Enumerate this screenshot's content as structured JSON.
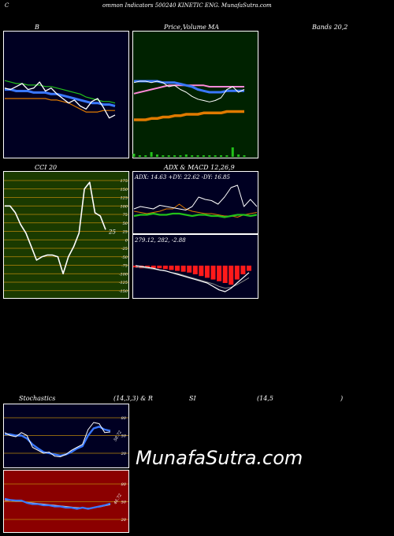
{
  "header": {
    "left": "C",
    "center": "ommon  Indicators 500240  KINETIC ENG. MunafaSutra.com"
  },
  "titles": {
    "bollinger": "B",
    "price": "Price,",
    "volume": "Volume",
    "ma": "MA",
    "bands": "Bands 20,2",
    "cci": "CCI 20",
    "adx_macd": "ADX  & MACD 12,26,9",
    "stoch": "Stochastics",
    "stoch_params": "(14,3,3) & R",
    "rsi": "SI",
    "rsi_params": "(14,5",
    "rsi_close": ")"
  },
  "readouts": {
    "adx": "ADX: 14.63  +DY: 22.62  -DY: 16.85",
    "macd": "279.12,  282,  -2.88",
    "cci_value": "25",
    "stoch_value": "58.72",
    "rsi_value": "46.72"
  },
  "watermark": "MunafaSutra.com",
  "colors": {
    "panel_dark": "#000022",
    "price_bg": "#002200",
    "cci_bg": "#1a3a00",
    "rsi_bg": "#8b0000",
    "grid": "#b8860b",
    "blue_band": "#3a78ff",
    "green_band": "#22c01a",
    "orange": "#e07a00",
    "pink": "#ff8ad8",
    "red_hist": "#ff1a1a"
  },
  "chart_data": [
    {
      "type": "line",
      "name": "bollinger-bands",
      "series": [
        {
          "values": [
            97,
            96,
            95,
            95,
            94,
            94,
            94,
            93,
            93,
            92,
            91,
            90,
            89,
            88,
            86,
            85,
            84,
            83,
            83,
            82
          ]
        },
        {
          "values": [
            92,
            91,
            93,
            95,
            91,
            92,
            96,
            90,
            92,
            88,
            85,
            82,
            84,
            80,
            78,
            83,
            85,
            79,
            72,
            74
          ]
        },
        {
          "values": [
            91,
            91,
            90,
            90,
            90,
            89,
            89,
            89,
            88,
            88,
            87,
            86,
            85,
            84,
            83,
            82,
            82,
            81,
            81,
            80
          ]
        },
        {
          "values": [
            85,
            85,
            85,
            85,
            85,
            85,
            85,
            85,
            84,
            84,
            83,
            82,
            80,
            78,
            76,
            76,
            76,
            77,
            77,
            77
          ]
        }
      ]
    },
    {
      "type": "line",
      "name": "price-ma",
      "series": [
        {
          "values": [
            85,
            86,
            86,
            85,
            86,
            85,
            82,
            83,
            80,
            78,
            75,
            73,
            72,
            71,
            72,
            74,
            80,
            82,
            78,
            80
          ]
        },
        {
          "values": [
            86,
            86,
            86,
            86,
            86,
            85,
            85,
            85,
            84,
            83,
            82,
            80,
            79,
            78,
            78,
            78,
            79,
            79,
            79,
            79
          ]
        },
        {
          "values": [
            77,
            78,
            79,
            80,
            81,
            82,
            83,
            83,
            83,
            83,
            83,
            83,
            83,
            82,
            82,
            82,
            82,
            82,
            82,
            82
          ]
        },
        {
          "values": [
            58,
            58,
            58,
            59,
            59,
            60,
            60,
            61,
            61,
            62,
            62,
            62,
            63,
            63,
            63,
            63,
            64,
            64,
            64,
            64
          ]
        }
      ],
      "volume": [
        4,
        2,
        2,
        6,
        3,
        2,
        2,
        2,
        2,
        3,
        2,
        2,
        2,
        2,
        2,
        2,
        2,
        12,
        3,
        2
      ]
    },
    {
      "type": "line",
      "name": "cci",
      "yticks": [
        175,
        150,
        125,
        100,
        75,
        50,
        25,
        0,
        -25,
        -50,
        -75,
        -100,
        -125,
        -150,
        -175
      ],
      "values": [
        100,
        100,
        80,
        45,
        20,
        -20,
        -60,
        -50,
        -45,
        -45,
        -50,
        -100,
        -50,
        -20,
        20,
        150,
        170,
        80,
        70,
        30
      ]
    },
    {
      "type": "line",
      "name": "adx-dmi",
      "series": [
        {
          "values": [
            14,
            15,
            15,
            16,
            15,
            15,
            16,
            16,
            15,
            14,
            15,
            15,
            14,
            14,
            13,
            14,
            15,
            15,
            14,
            15
          ]
        },
        {
          "values": [
            20,
            22,
            21,
            20,
            23,
            22,
            21,
            20,
            19,
            22,
            30,
            28,
            27,
            24,
            30,
            38,
            40,
            22,
            28,
            22
          ]
        },
        {
          "values": [
            18,
            17,
            16,
            17,
            18,
            20,
            20,
            24,
            20,
            18,
            17,
            16,
            16,
            15,
            14,
            14,
            13,
            15,
            16,
            17
          ]
        }
      ]
    },
    {
      "type": "bar",
      "name": "macd",
      "histogram": [
        -2,
        -3,
        -2,
        -3,
        -3,
        -4,
        -5,
        -6,
        -7,
        -8,
        -10,
        -12,
        -14,
        -16,
        -18,
        -20,
        -22,
        -16,
        -10,
        -6
      ],
      "series": [
        {
          "values": [
            0,
            -1,
            -2,
            -3,
            -5,
            -6,
            -8,
            -10,
            -12,
            -14,
            -16,
            -18,
            -20,
            -24,
            -28,
            -30,
            -26,
            -20,
            -14,
            -8
          ]
        },
        {
          "values": [
            -2,
            -2,
            -3,
            -4,
            -5,
            -6,
            -8,
            -9,
            -11,
            -13,
            -15,
            -17,
            -19,
            -21,
            -24,
            -26,
            -25,
            -22,
            -18,
            -14
          ]
        }
      ]
    },
    {
      "type": "line",
      "name": "stochastics",
      "yticks": [
        80,
        50,
        20
      ],
      "series": [
        {
          "values": [
            55,
            50,
            48,
            55,
            50,
            30,
            25,
            20,
            22,
            15,
            14,
            18,
            25,
            30,
            35,
            60,
            72,
            70,
            55,
            56
          ]
        },
        {
          "values": [
            52,
            52,
            50,
            50,
            45,
            35,
            28,
            22,
            20,
            18,
            16,
            18,
            22,
            28,
            32,
            50,
            62,
            65,
            60,
            58
          ]
        }
      ]
    },
    {
      "type": "line",
      "name": "rsi",
      "yticks": [
        80,
        50,
        20
      ],
      "series": [
        {
          "values": [
            55,
            53,
            52,
            52,
            48,
            46,
            46,
            44,
            44,
            42,
            42,
            40,
            40,
            38,
            40,
            38,
            40,
            42,
            44,
            47
          ]
        },
        {
          "values": [
            52,
            52,
            51,
            51,
            49,
            48,
            47,
            46,
            45,
            44,
            43,
            42,
            41,
            40,
            40,
            39,
            40,
            41,
            43,
            45
          ]
        }
      ]
    }
  ]
}
